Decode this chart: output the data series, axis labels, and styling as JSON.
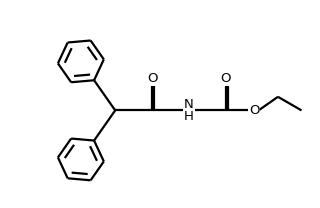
{
  "bg_color": "#ffffff",
  "line_color": "#000000",
  "line_width": 1.6,
  "font_size_atom": 9.5,
  "figsize": [
    3.2,
    2.08
  ],
  "dpi": 100,
  "xlim": [
    0.0,
    10.0
  ],
  "ylim": [
    0.5,
    6.5
  ]
}
